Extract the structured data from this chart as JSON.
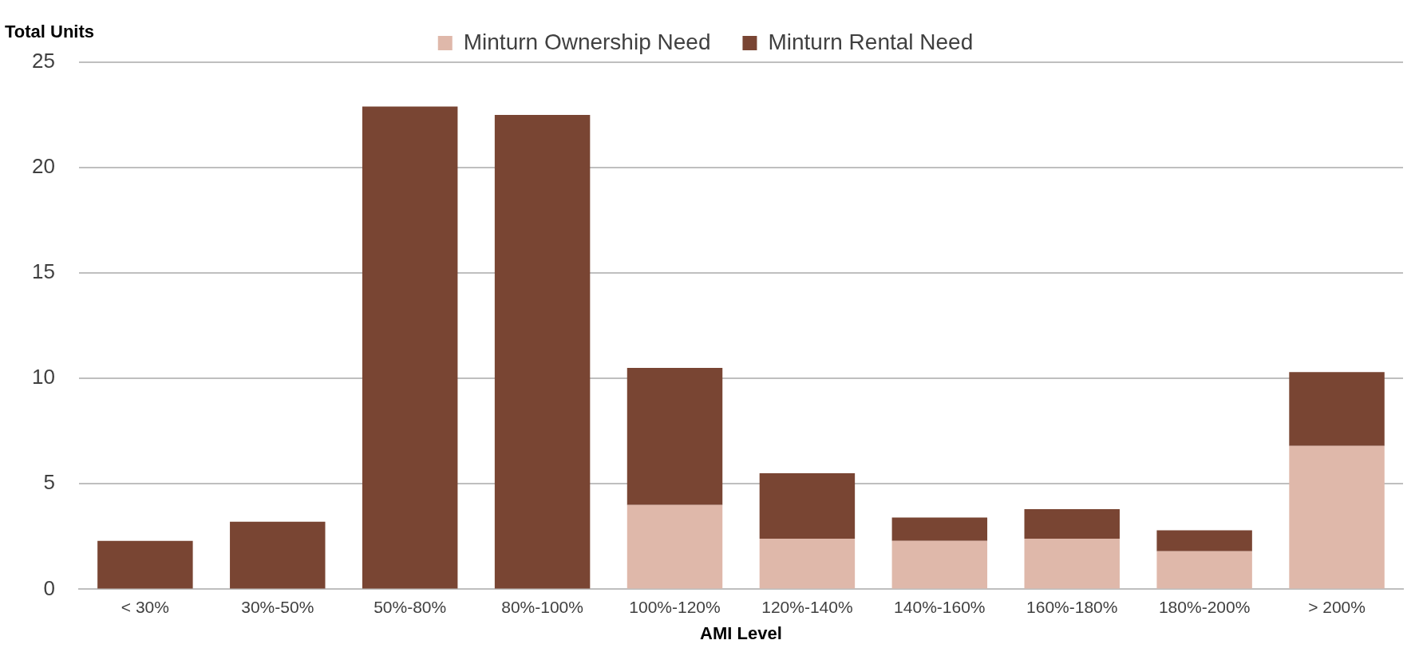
{
  "chart_data": {
    "type": "bar",
    "stacked": true,
    "xlabel": "AMI Level",
    "ylabel": "Total Units",
    "categories": [
      "< 30%",
      "30%-50%",
      "50%-80%",
      "80%-100%",
      "100%-120%",
      "120%-140%",
      "140%-160%",
      "160%-180%",
      "180%-200%",
      "> 200%"
    ],
    "series": [
      {
        "name": "Minturn Ownership Need",
        "color": "#dfb8aa",
        "values": [
          null,
          null,
          null,
          null,
          4.0,
          2.4,
          2.3,
          2.4,
          1.8,
          6.8
        ]
      },
      {
        "name": "Minturn Rental Need",
        "color": "#794533",
        "values": [
          2.3,
          3.2,
          22.9,
          22.5,
          6.5,
          3.1,
          1.1,
          1.4,
          1.0,
          3.5
        ]
      }
    ],
    "ylim": [
      0,
      25
    ],
    "yticks": [
      0,
      5,
      10,
      15,
      20,
      25
    ],
    "grid": "y",
    "legend": "top"
  }
}
